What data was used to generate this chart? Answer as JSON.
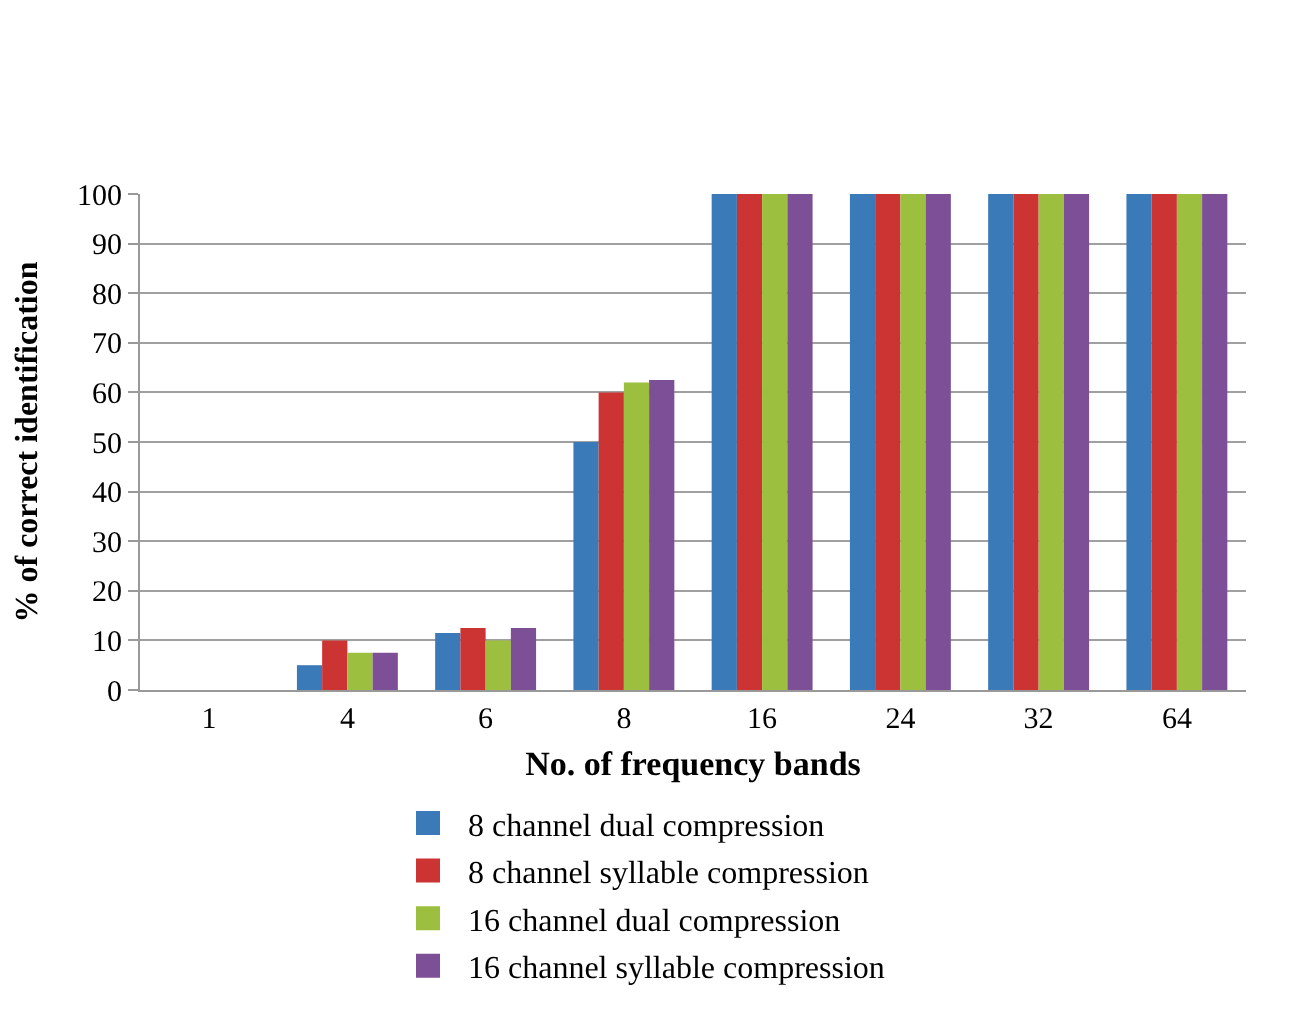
{
  "chart_data": {
    "type": "bar",
    "xlabel": "No. of frequency bands",
    "ylabel": "% of correct identification",
    "categories": [
      "1",
      "4",
      "6",
      "8",
      "16",
      "24",
      "32",
      "64"
    ],
    "series": [
      {
        "name": "8 channel dual compression",
        "color": "#3a7ab8",
        "values": [
          0,
          5,
          11.5,
          50,
          100,
          100,
          100,
          100
        ]
      },
      {
        "name": "8 channel syllable compression",
        "color": "#cc3333",
        "values": [
          0,
          10,
          12.5,
          60,
          100,
          100,
          100,
          100
        ]
      },
      {
        "name": "16 channel dual compression",
        "color": "#9dbf3f",
        "values": [
          0,
          7.5,
          10,
          62,
          100,
          100,
          100,
          100
        ]
      },
      {
        "name": "16 channel syllable compression",
        "color": "#7d4f96",
        "values": [
          0,
          7.5,
          12.5,
          62.5,
          100,
          100,
          100,
          100
        ]
      }
    ],
    "ylim": [
      0,
      100
    ],
    "yticks": [
      0,
      10,
      20,
      30,
      40,
      50,
      60,
      70,
      80,
      90,
      100
    ],
    "grid": "y",
    "legend": "bottom"
  }
}
